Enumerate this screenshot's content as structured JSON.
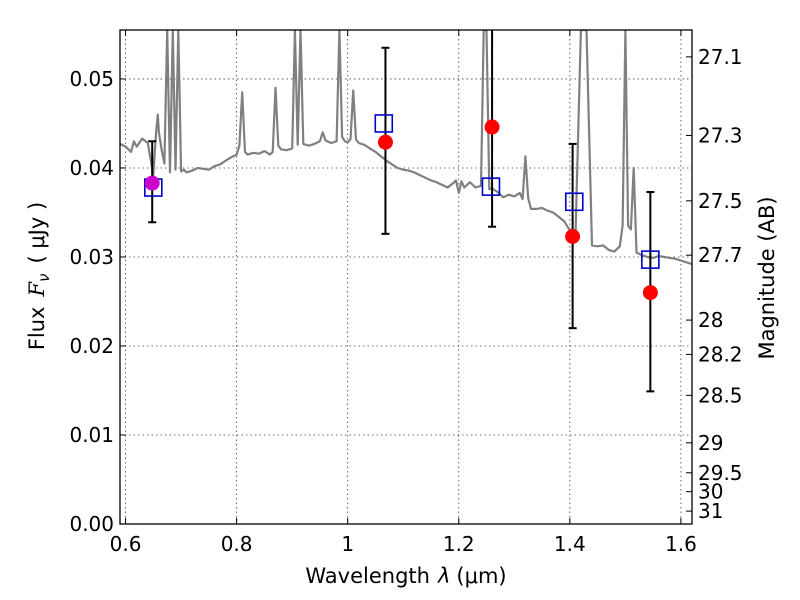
{
  "chart_data": {
    "type": "scatter",
    "title": "",
    "xlabel": "Wavelength  λ (μm)",
    "ylabel": "Flux  F_ν  ( μJy )",
    "ylabel_parts": [
      "Flux",
      "F",
      "ν",
      "( μJy )"
    ],
    "xlabel_parts": [
      "Wavelength",
      "λ",
      "(μm)"
    ],
    "y2label": "Magnitude (AB)",
    "xlim": [
      0.59,
      1.62
    ],
    "ylim": [
      0.0,
      0.0555
    ],
    "x_ticks": [
      0.6,
      0.8,
      1.0,
      1.2,
      1.4,
      1.6
    ],
    "x_tick_labels": [
      "0.6",
      "0.8",
      "1",
      "1.2",
      "1.4",
      "1.6"
    ],
    "y_ticks": [
      0.0,
      0.01,
      0.02,
      0.03,
      0.04,
      0.05
    ],
    "y_tick_labels": [
      "0.00",
      "0.01",
      "0.02",
      "0.03",
      "0.04",
      "0.05"
    ],
    "y2_ticks": [
      27.1,
      27.3,
      27.5,
      27.7,
      28,
      28.2,
      28.5,
      29,
      29.5,
      30,
      31
    ],
    "y2_tick_labels": [
      "27.1",
      "27.3",
      "27.5",
      "27.7",
      "28",
      "28.2",
      "28.5",
      "29",
      "29.5",
      "30",
      "31"
    ],
    "grid": true,
    "colors": {
      "spectrum": "#808080",
      "observed": "#ff0000",
      "model": "#0000cc",
      "first_point": "#cc00cc",
      "errorbar": "#000000"
    },
    "spectrum": {
      "x": [
        0.59,
        0.6,
        0.61,
        0.615,
        0.62,
        0.63,
        0.64,
        0.65,
        0.655,
        0.658,
        0.66,
        0.665,
        0.67,
        0.675,
        0.68,
        0.685,
        0.69,
        0.695,
        0.7,
        0.705,
        0.71,
        0.72,
        0.73,
        0.75,
        0.76,
        0.77,
        0.78,
        0.79,
        0.8,
        0.805,
        0.81,
        0.815,
        0.82,
        0.83,
        0.84,
        0.85,
        0.86,
        0.865,
        0.87,
        0.875,
        0.88,
        0.89,
        0.9,
        0.905,
        0.91,
        0.915,
        0.92,
        0.93,
        0.94,
        0.95,
        0.955,
        0.96,
        0.97,
        0.98,
        0.985,
        0.99,
        0.995,
        1.0,
        1.005,
        1.01,
        1.015,
        1.02,
        1.03,
        1.04,
        1.05,
        1.06,
        1.07,
        1.08,
        1.09,
        1.1,
        1.11,
        1.12,
        1.13,
        1.14,
        1.15,
        1.16,
        1.17,
        1.18,
        1.19,
        1.195,
        1.2,
        1.205,
        1.21,
        1.22,
        1.23,
        1.24,
        1.245,
        1.25,
        1.255,
        1.26,
        1.27,
        1.28,
        1.29,
        1.3,
        1.31,
        1.315,
        1.32,
        1.325,
        1.33,
        1.34,
        1.35,
        1.36,
        1.37,
        1.38,
        1.39,
        1.4,
        1.41,
        1.42,
        1.43,
        1.44,
        1.45,
        1.46,
        1.47,
        1.48,
        1.49,
        1.495,
        1.5,
        1.505,
        1.51,
        1.515,
        1.52,
        1.53,
        1.54,
        1.55,
        1.56,
        1.57,
        1.58,
        1.59,
        1.6,
        1.61,
        1.62
      ],
      "y": [
        0.0427,
        0.0424,
        0.0418,
        0.043,
        0.0424,
        0.0433,
        0.0428,
        0.0392,
        0.044,
        0.046,
        0.044,
        0.042,
        0.0405,
        0.0555,
        0.0395,
        0.0555,
        0.0398,
        0.0555,
        0.0396,
        0.0398,
        0.0395,
        0.0397,
        0.04,
        0.0398,
        0.0402,
        0.0404,
        0.0408,
        0.0412,
        0.0415,
        0.0425,
        0.0485,
        0.0418,
        0.0415,
        0.0417,
        0.0416,
        0.0419,
        0.0415,
        0.0418,
        0.049,
        0.0425,
        0.0421,
        0.042,
        0.0422,
        0.0555,
        0.0426,
        0.0555,
        0.0427,
        0.0425,
        0.0427,
        0.043,
        0.044,
        0.0431,
        0.0428,
        0.043,
        0.0555,
        0.0435,
        0.043,
        0.0429,
        0.0432,
        0.0487,
        0.0432,
        0.0428,
        0.0426,
        0.0422,
        0.0418,
        0.0413,
        0.0408,
        0.0404,
        0.04,
        0.0398,
        0.0397,
        0.0395,
        0.0392,
        0.0389,
        0.0386,
        0.0384,
        0.0381,
        0.0378,
        0.0383,
        0.0386,
        0.0372,
        0.0385,
        0.0378,
        0.0384,
        0.0378,
        0.038,
        0.0555,
        0.0555,
        0.0376,
        0.0377,
        0.0373,
        0.0367,
        0.037,
        0.0368,
        0.0372,
        0.0365,
        0.0413,
        0.0366,
        0.0354,
        0.0354,
        0.0355,
        0.0352,
        0.035,
        0.0345,
        0.034,
        0.033,
        0.032,
        0.0555,
        0.0555,
        0.0313,
        0.0312,
        0.0313,
        0.0308,
        0.0306,
        0.0312,
        0.0335,
        0.0555,
        0.0335,
        0.0331,
        0.04,
        0.0305,
        0.0302,
        0.03,
        0.0299,
        0.0301,
        0.03,
        0.0299,
        0.0298,
        0.0296,
        0.0294,
        0.0292
      ]
    },
    "observed": {
      "name": "",
      "x": [
        0.648,
        1.068,
        1.26,
        1.405,
        1.545
      ],
      "y": [
        0.0383,
        0.0429,
        0.0446,
        0.0323,
        0.026
      ],
      "err_low": [
        0.0339,
        0.0326,
        0.0334,
        0.022,
        0.0149
      ],
      "err_high": [
        0.043,
        0.0535,
        0.0555,
        0.0427,
        0.0373
      ]
    },
    "model": {
      "name": "",
      "x": [
        0.65,
        1.065,
        1.258,
        1.408,
        1.545
      ],
      "y": [
        0.0378,
        0.045,
        0.0379,
        0.0362,
        0.0297
      ]
    }
  }
}
